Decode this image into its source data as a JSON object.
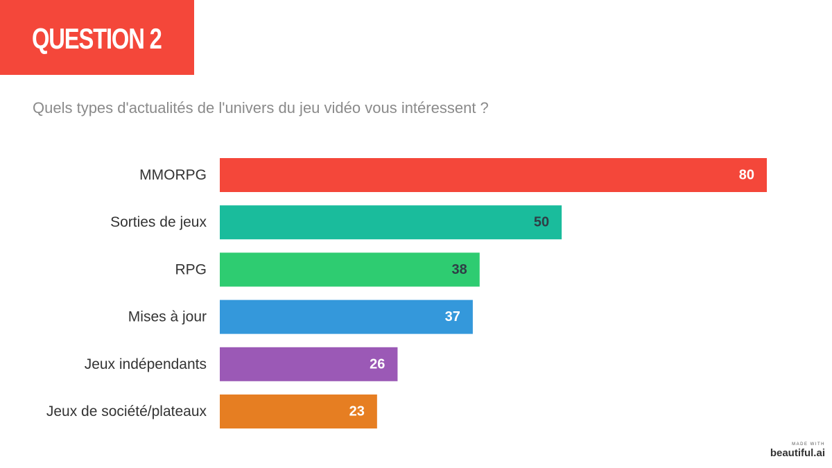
{
  "header": {
    "title": "QUESTION 2",
    "subtitle": "Quels types d'actualités de l'univers du jeu vidéo vous intéressent ?"
  },
  "branding": {
    "made_with": "MADE WITH",
    "name": "beautiful.ai"
  },
  "colors": {
    "title_background": "#f4473a",
    "subtitle_text": "#8a8a8a"
  },
  "chart_data": {
    "type": "bar",
    "orientation": "horizontal",
    "title": "",
    "xlabel": "",
    "ylabel": "",
    "xlim": [
      0,
      80
    ],
    "grid": false,
    "legend": "none",
    "categories": [
      "MMORPG",
      "Sorties de jeux",
      "RPG",
      "Mises à jour",
      "Jeux indépendants",
      "Jeux de société/plateaux"
    ],
    "values": [
      80,
      50,
      38,
      37,
      26,
      23
    ],
    "bar_colors": [
      "#f4473a",
      "#1abc9c",
      "#2ecc71",
      "#3498db",
      "#9b59b6",
      "#e67e22"
    ],
    "label_colors": [
      "#ffffff",
      "#2f3e46",
      "#2f3e46",
      "#ffffff",
      "#ffffff",
      "#ffffff"
    ]
  }
}
